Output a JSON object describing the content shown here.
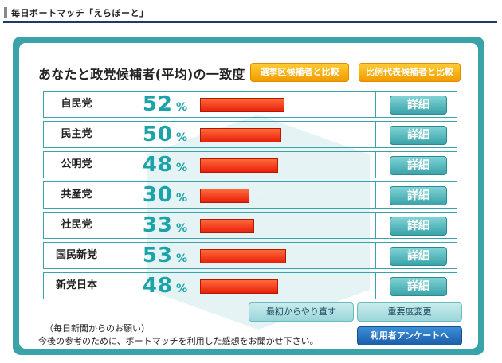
{
  "header": {
    "title": "毎日ボートマッチ「えらぼーと」"
  },
  "main": {
    "heading": "あなたと政党候補者(平均)の一致度",
    "btn_district": "選挙区候補者と比較",
    "btn_proportional": "比例代表候補者と比較",
    "percent_unit": "%",
    "detail_label": "詳細",
    "parties": [
      {
        "name": "自民党",
        "score": "52",
        "ratio": 0.52
      },
      {
        "name": "民主党",
        "score": "50",
        "ratio": 0.5
      },
      {
        "name": "公明党",
        "score": "48",
        "ratio": 0.48
      },
      {
        "name": "共産党",
        "score": "30",
        "ratio": 0.3
      },
      {
        "name": "社民党",
        "score": "33",
        "ratio": 0.33
      },
      {
        "name": "国民新党",
        "score": "53",
        "ratio": 0.53
      },
      {
        "name": "新党日本",
        "score": "48",
        "ratio": 0.48
      }
    ],
    "btn_restart": "最初からやり直す",
    "btn_weight": "重要度変更",
    "note_line1": "（毎日新聞からのお願い）",
    "note_line2": "今後の参考のために、ボートマッチを利用した感想をお聞かせ下さい。",
    "btn_survey": "利用者アンケートへ"
  },
  "colors": {
    "accent": "#3aa3a9",
    "score": "#1aa3a8",
    "bar": "#e8200a",
    "orange": "#f29b00",
    "navy": "#1c3a6e"
  }
}
